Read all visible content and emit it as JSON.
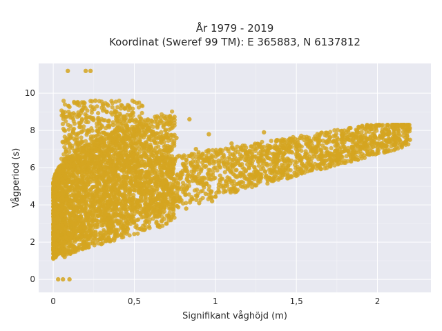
{
  "chart_data": {
    "type": "scatter",
    "title": "År 1979 - 2019",
    "subtitle": "Koordinat (Sweref 99 TM): E 365883, N 6137812",
    "xlabel": "Signifikant våghöjd (m)",
    "ylabel": "Vågperiod (s)",
    "xlim": [
      -0.09,
      2.33
    ],
    "ylim": [
      -0.7,
      11.6
    ],
    "x_ticks": [
      {
        "value": 0,
        "label": "0"
      },
      {
        "value": 0.5,
        "label": "0,5"
      },
      {
        "value": 1,
        "label": "1"
      },
      {
        "value": 1.5,
        "label": "1,5"
      },
      {
        "value": 2,
        "label": "2"
      }
    ],
    "y_ticks": [
      {
        "value": 0,
        "label": "0"
      },
      {
        "value": 2,
        "label": "2"
      },
      {
        "value": 4,
        "label": "4"
      },
      {
        "value": 6,
        "label": "6"
      },
      {
        "value": 8,
        "label": "8"
      },
      {
        "value": 10,
        "label": "10"
      }
    ],
    "grid": true,
    "legend": "none",
    "marker_color": "#d4a520",
    "background_color": "#e8e9f1",
    "series": [
      {
        "points": [
          [
            0.02,
            1.3
          ],
          [
            0.03,
            2.1
          ],
          [
            0.04,
            1.6
          ],
          [
            0.05,
            2.4
          ],
          [
            0.06,
            3.2
          ],
          [
            0.07,
            1.2
          ],
          [
            0.08,
            4.5
          ],
          [
            0.09,
            3.8
          ],
          [
            0.1,
            1.5
          ],
          [
            0.11,
            2.8
          ],
          [
            0.12,
            5.6
          ],
          [
            0.13,
            6.9
          ],
          [
            0.14,
            7.8
          ],
          [
            0.15,
            2.2
          ],
          [
            0.16,
            8.4
          ],
          [
            0.17,
            3.4
          ],
          [
            0.18,
            9.1
          ],
          [
            0.19,
            4.7
          ],
          [
            0.2,
            7.2
          ],
          [
            0.21,
            5.9
          ],
          [
            0.22,
            2.6
          ],
          [
            0.23,
            8.7
          ],
          [
            0.24,
            6.4
          ],
          [
            0.25,
            3.9
          ],
          [
            0.26,
            9.6
          ],
          [
            0.27,
            7.5
          ],
          [
            0.28,
            4.2
          ],
          [
            0.29,
            8.1
          ],
          [
            0.3,
            2.9
          ],
          [
            0.31,
            6.6
          ],
          [
            0.32,
            5.1
          ],
          [
            0.33,
            9.0
          ],
          [
            0.34,
            3.3
          ],
          [
            0.35,
            7.0
          ],
          [
            0.36,
            4.9
          ],
          [
            0.37,
            8.3
          ],
          [
            0.38,
            2.4
          ],
          [
            0.39,
            6.1
          ],
          [
            0.4,
            5.5
          ],
          [
            0.41,
            8.9
          ],
          [
            0.42,
            3.6
          ],
          [
            0.43,
            7.4
          ],
          [
            0.44,
            4.3
          ],
          [
            0.45,
            6.8
          ],
          [
            0.46,
            2.7
          ],
          [
            0.47,
            8.5
          ],
          [
            0.48,
            5.2
          ],
          [
            0.49,
            7.7
          ],
          [
            0.5,
            3.1
          ],
          [
            0.52,
            6.3
          ],
          [
            0.54,
            4.6
          ],
          [
            0.56,
            8.0
          ],
          [
            0.58,
            3.4
          ],
          [
            0.6,
            7.1
          ],
          [
            0.62,
            4.8
          ],
          [
            0.64,
            6.5
          ],
          [
            0.66,
            3.6
          ],
          [
            0.68,
            8.2
          ],
          [
            0.7,
            5.0
          ],
          [
            0.72,
            6.9
          ],
          [
            0.74,
            3.9
          ],
          [
            0.76,
            7.6
          ],
          [
            0.78,
            4.4
          ],
          [
            0.8,
            6.2
          ],
          [
            0.82,
            3.8
          ],
          [
            0.84,
            8.6
          ],
          [
            0.86,
            5.3
          ],
          [
            0.88,
            7.0
          ],
          [
            0.9,
            4.1
          ],
          [
            0.92,
            6.7
          ],
          [
            0.94,
            4.6
          ],
          [
            0.96,
            7.8
          ],
          [
            0.98,
            4.2
          ],
          [
            1.0,
            6.0
          ],
          [
            1.05,
            4.9
          ],
          [
            1.1,
            7.3
          ],
          [
            1.15,
            5.2
          ],
          [
            1.2,
            6.6
          ],
          [
            1.25,
            5.5
          ],
          [
            1.3,
            7.9
          ],
          [
            1.35,
            5.7
          ],
          [
            1.4,
            6.8
          ],
          [
            1.45,
            5.9
          ],
          [
            1.5,
            7.2
          ],
          [
            1.55,
            6.1
          ],
          [
            1.6,
            6.9
          ],
          [
            1.65,
            6.2
          ],
          [
            1.7,
            7.5
          ],
          [
            1.75,
            6.4
          ],
          [
            1.8,
            7.0
          ],
          [
            1.85,
            6.5
          ],
          [
            1.9,
            7.6
          ],
          [
            1.95,
            6.7
          ],
          [
            2.0,
            7.3
          ],
          [
            2.05,
            6.9
          ],
          [
            2.1,
            7.8
          ],
          [
            2.15,
            7.1
          ],
          [
            2.2,
            7.5
          ],
          [
            0.09,
            11.2
          ],
          [
            0.2,
            11.2
          ],
          [
            0.23,
            11.2
          ],
          [
            0.03,
            0.0
          ],
          [
            0.06,
            0.0
          ],
          [
            0.1,
            0.0
          ]
        ]
      }
    ]
  }
}
